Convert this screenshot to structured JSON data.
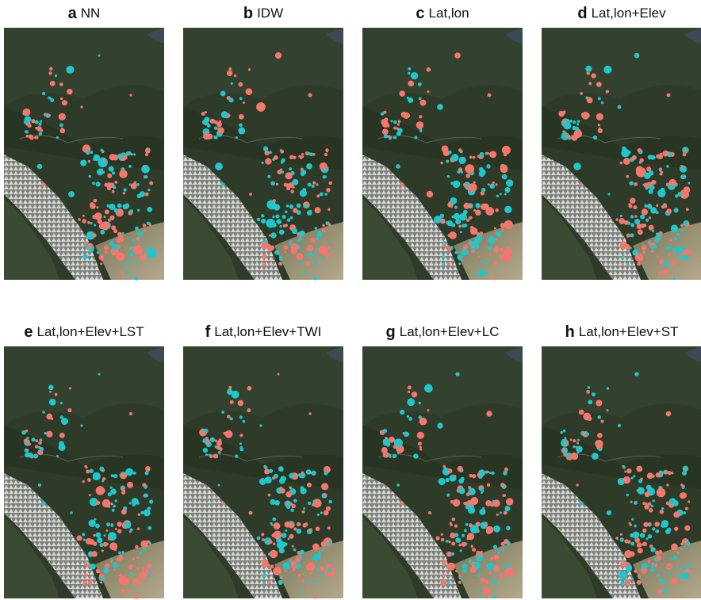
{
  "panels": [
    {
      "letter": "a",
      "title": "NN"
    },
    {
      "letter": "b",
      "title": "IDW"
    },
    {
      "letter": "c",
      "title": "Lat,lon"
    },
    {
      "letter": "d",
      "title": "Lat,lon+Elev"
    },
    {
      "letter": "e",
      "title": "Lat,lon+Elev+LST"
    },
    {
      "letter": "f",
      "title": "Lat,lon+Elev+TWI"
    },
    {
      "letter": "g",
      "title": "Lat,lon+Elev+LC"
    },
    {
      "letter": "h",
      "title": "Lat,lon+Elev+ST"
    }
  ]
}
